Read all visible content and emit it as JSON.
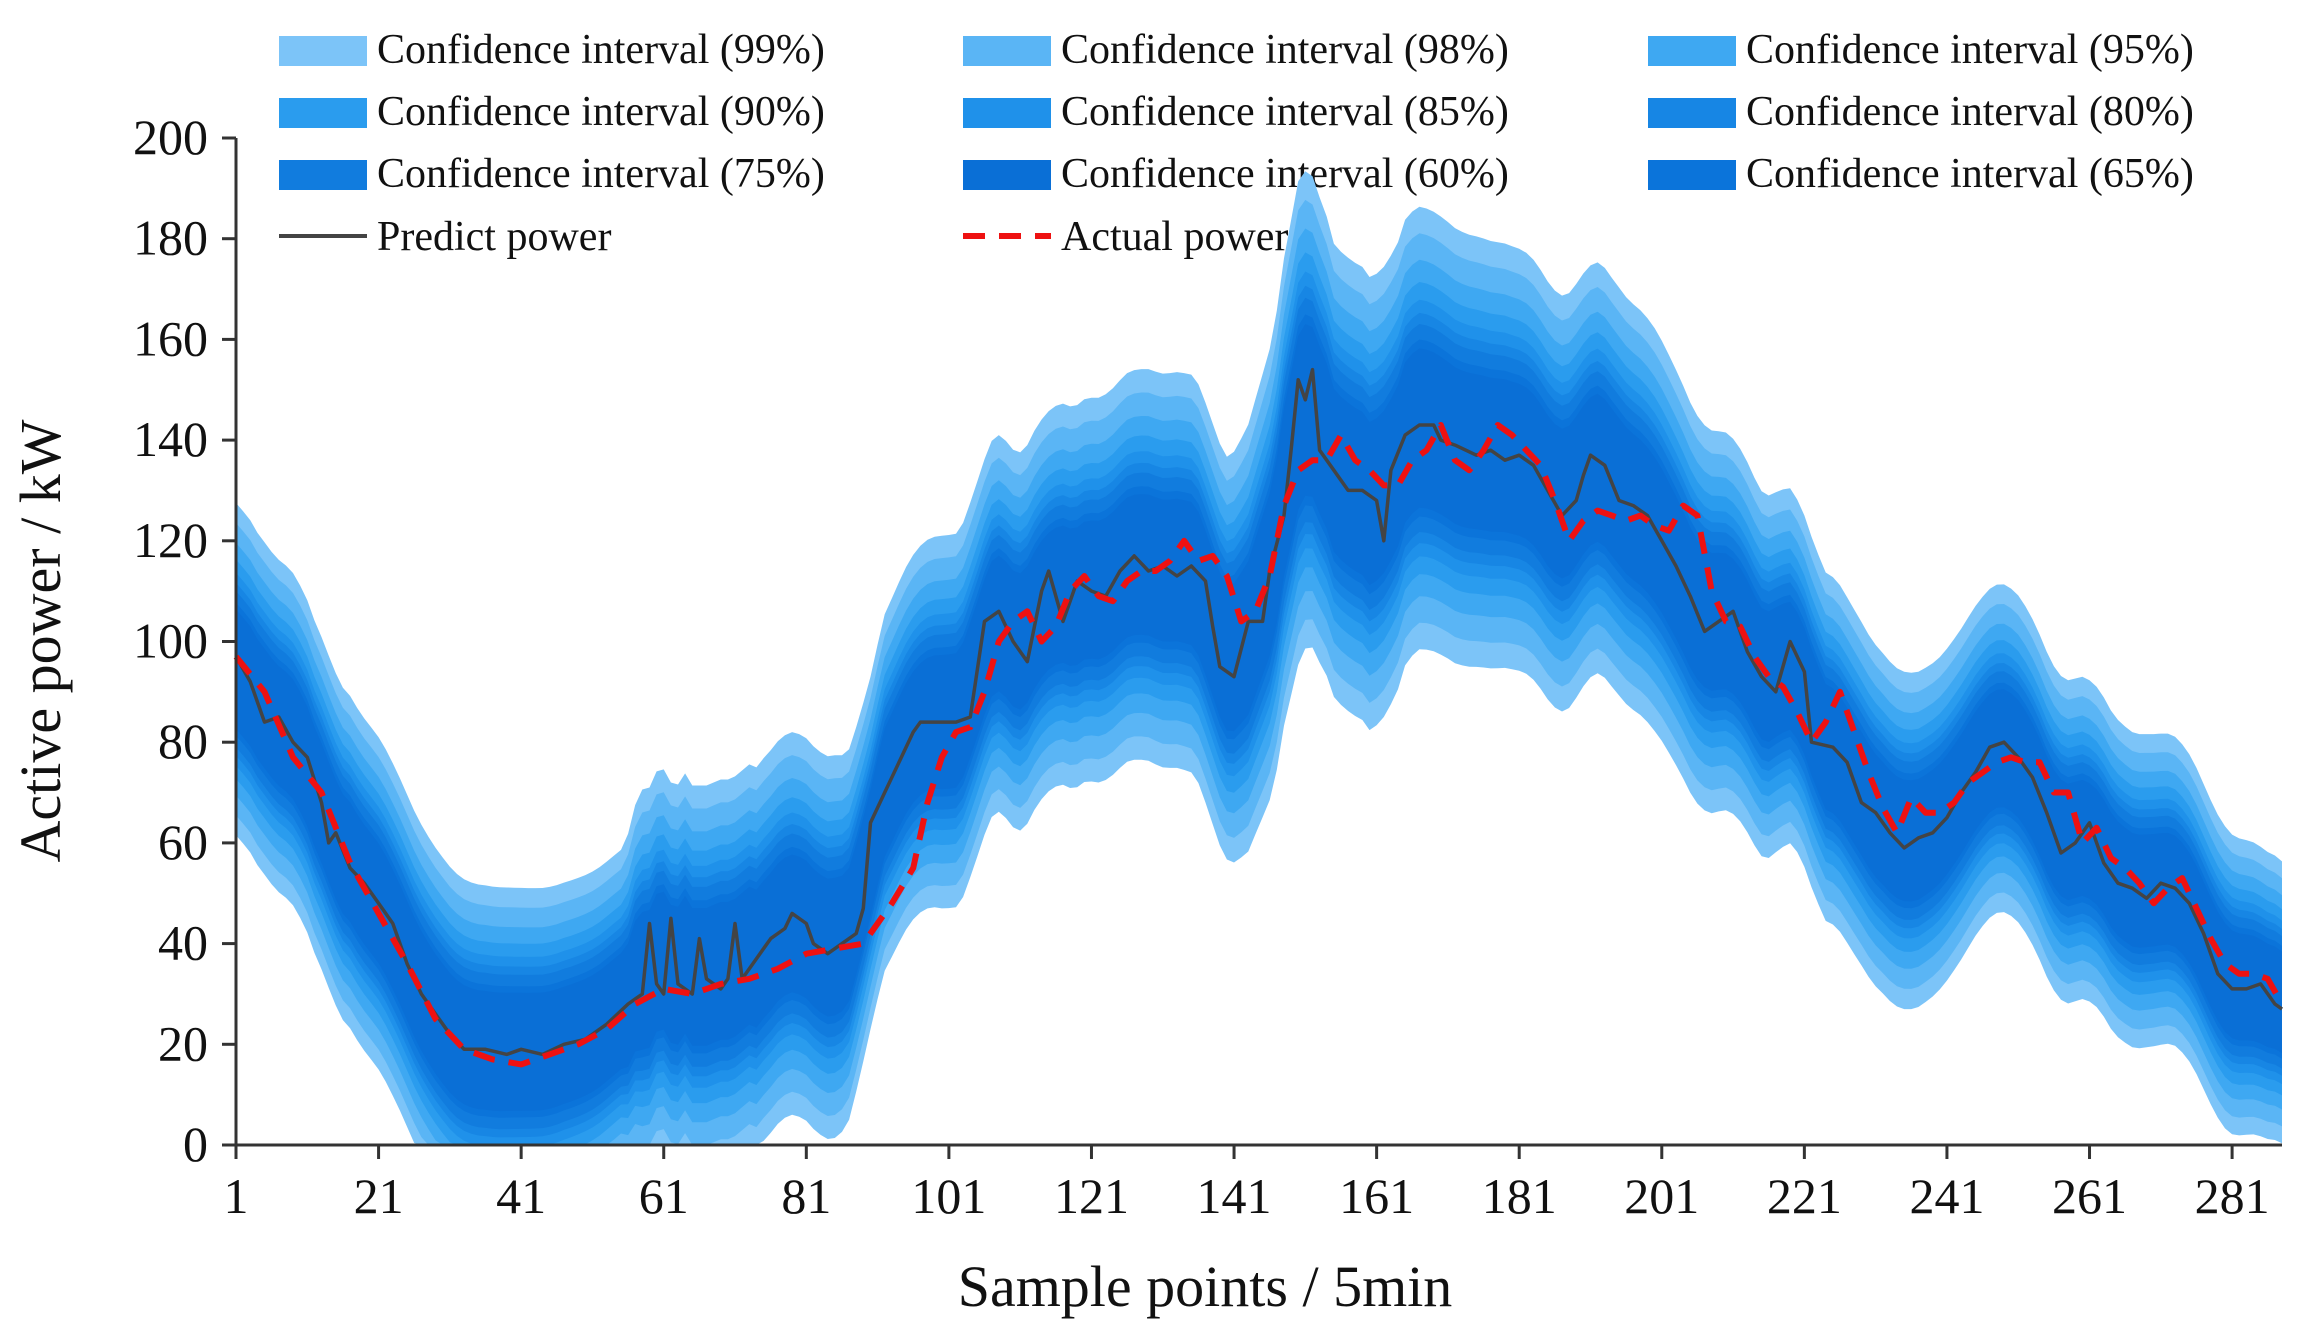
{
  "chart_data": {
    "type": "area",
    "title": "",
    "xlabel": "Sample points / 5min",
    "ylabel": "Active power / kW",
    "xlim": [
      1,
      288
    ],
    "ylim": [
      0,
      200
    ],
    "x_ticks": [
      "1",
      "21",
      "41",
      "61",
      "81",
      "101",
      "121",
      "141",
      "161",
      "181",
      "201",
      "221",
      "241",
      "261",
      "281"
    ],
    "y_ticks": [
      "0",
      "20",
      "40",
      "60",
      "80",
      "100",
      "120",
      "140",
      "160",
      "180",
      "200"
    ],
    "grid": false,
    "legend_position": "top",
    "legend": [
      {
        "label": "Confidence interval (99%)",
        "kind": "band",
        "color": "#7cc4f8"
      },
      {
        "label": "Confidence interval (98%)",
        "kind": "band",
        "color": "#5ab5f5"
      },
      {
        "label": "Confidence interval (95%)",
        "kind": "band",
        "color": "#3ea8f2"
      },
      {
        "label": "Confidence interval (90%)",
        "kind": "band",
        "color": "#2a9cee"
      },
      {
        "label": "Confidence interval (85%)",
        "kind": "band",
        "color": "#1f91ea"
      },
      {
        "label": "Confidence interval (80%)",
        "kind": "band",
        "color": "#1786e4"
      },
      {
        "label": "Confidence interval (75%)",
        "kind": "band",
        "color": "#117cde"
      },
      {
        "label": "Confidence interval (60%)",
        "kind": "band",
        "color": "#0a6fd6"
      },
      {
        "label": "Confidence interval (65%)",
        "kind": "band",
        "color": "#0b74da"
      },
      {
        "label": "Predict power",
        "kind": "line",
        "color": "#444444"
      },
      {
        "label": "Actual power",
        "kind": "dashed-line",
        "color": "#ee1111"
      }
    ],
    "band_levels": [
      99,
      98,
      95,
      90,
      85,
      80,
      75,
      65,
      60
    ],
    "band_colors": [
      "#7cc4f8",
      "#5ab5f5",
      "#3ea8f2",
      "#2a9cee",
      "#1f91ea",
      "#1786e4",
      "#117cde",
      "#0b74da",
      "#0a6fd6"
    ],
    "band_half_width_ratio": [
      1.0,
      0.88,
      0.76,
      0.66,
      0.58,
      0.52,
      0.47,
      0.4,
      0.36
    ],
    "band_99_half_width": [
      [
        1,
        33
      ],
      [
        30,
        33
      ],
      [
        55,
        32
      ],
      [
        58,
        38
      ],
      [
        85,
        38
      ],
      [
        90,
        35
      ],
      [
        100,
        37
      ],
      [
        120,
        38
      ],
      [
        140,
        40
      ],
      [
        150,
        48
      ],
      [
        155,
        45
      ],
      [
        160,
        45
      ],
      [
        180,
        42
      ],
      [
        200,
        40
      ],
      [
        220,
        35
      ],
      [
        240,
        33
      ],
      [
        260,
        32
      ],
      [
        280,
        30
      ],
      [
        288,
        28
      ]
    ],
    "series": [
      {
        "name": "Predict power",
        "points": [
          [
            1,
            97
          ],
          [
            3,
            92
          ],
          [
            5,
            84
          ],
          [
            7,
            85
          ],
          [
            9,
            80
          ],
          [
            11,
            77
          ],
          [
            13,
            68
          ],
          [
            14,
            60
          ],
          [
            15,
            62
          ],
          [
            17,
            55
          ],
          [
            19,
            52
          ],
          [
            21,
            48
          ],
          [
            23,
            44
          ],
          [
            25,
            36
          ],
          [
            27,
            30
          ],
          [
            29,
            26
          ],
          [
            31,
            22
          ],
          [
            33,
            19
          ],
          [
            36,
            19
          ],
          [
            39,
            18
          ],
          [
            41,
            19
          ],
          [
            44,
            18
          ],
          [
            47,
            20
          ],
          [
            50,
            21
          ],
          [
            53,
            24
          ],
          [
            56,
            28
          ],
          [
            58,
            30
          ],
          [
            59,
            44
          ],
          [
            60,
            32
          ],
          [
            61,
            30
          ],
          [
            62,
            45
          ],
          [
            63,
            32
          ],
          [
            65,
            30
          ],
          [
            66,
            41
          ],
          [
            67,
            33
          ],
          [
            69,
            31
          ],
          [
            70,
            33
          ],
          [
            71,
            44
          ],
          [
            72,
            33
          ],
          [
            74,
            37
          ],
          [
            76,
            41
          ],
          [
            78,
            43
          ],
          [
            79,
            46
          ],
          [
            81,
            44
          ],
          [
            82,
            40
          ],
          [
            84,
            38
          ],
          [
            86,
            40
          ],
          [
            88,
            42
          ],
          [
            89,
            47
          ],
          [
            90,
            64
          ],
          [
            92,
            70
          ],
          [
            94,
            76
          ],
          [
            96,
            82
          ],
          [
            97,
            84
          ],
          [
            100,
            84
          ],
          [
            102,
            84
          ],
          [
            104,
            85
          ],
          [
            106,
            104
          ],
          [
            108,
            106
          ],
          [
            110,
            100
          ],
          [
            112,
            96
          ],
          [
            114,
            110
          ],
          [
            115,
            114
          ],
          [
            117,
            104
          ],
          [
            119,
            112
          ],
          [
            121,
            110
          ],
          [
            123,
            109
          ],
          [
            125,
            114
          ],
          [
            127,
            117
          ],
          [
            129,
            114
          ],
          [
            131,
            115
          ],
          [
            133,
            113
          ],
          [
            135,
            115
          ],
          [
            137,
            112
          ],
          [
            138,
            103
          ],
          [
            139,
            95
          ],
          [
            141,
            93
          ],
          [
            143,
            104
          ],
          [
            145,
            104
          ],
          [
            146,
            114
          ],
          [
            148,
            125
          ],
          [
            149,
            138
          ],
          [
            150,
            152
          ],
          [
            151,
            148
          ],
          [
            152,
            154
          ],
          [
            153,
            138
          ],
          [
            155,
            134
          ],
          [
            157,
            130
          ],
          [
            159,
            130
          ],
          [
            161,
            128
          ],
          [
            162,
            120
          ],
          [
            163,
            134
          ],
          [
            165,
            141
          ],
          [
            167,
            143
          ],
          [
            169,
            143
          ],
          [
            170,
            140
          ],
          [
            172,
            139
          ],
          [
            175,
            137
          ],
          [
            177,
            138
          ],
          [
            179,
            136
          ],
          [
            181,
            137
          ],
          [
            183,
            135
          ],
          [
            185,
            130
          ],
          [
            187,
            125
          ],
          [
            189,
            128
          ],
          [
            190,
            133
          ],
          [
            191,
            137
          ],
          [
            193,
            135
          ],
          [
            195,
            128
          ],
          [
            197,
            127
          ],
          [
            199,
            125
          ],
          [
            201,
            120
          ],
          [
            203,
            115
          ],
          [
            205,
            109
          ],
          [
            207,
            102
          ],
          [
            209,
            104
          ],
          [
            211,
            106
          ],
          [
            213,
            98
          ],
          [
            215,
            93
          ],
          [
            217,
            90
          ],
          [
            219,
            100
          ],
          [
            221,
            94
          ],
          [
            222,
            80
          ],
          [
            225,
            79
          ],
          [
            227,
            76
          ],
          [
            229,
            68
          ],
          [
            231,
            66
          ],
          [
            233,
            62
          ],
          [
            235,
            59
          ],
          [
            237,
            61
          ],
          [
            239,
            62
          ],
          [
            241,
            65
          ],
          [
            243,
            70
          ],
          [
            245,
            74
          ],
          [
            247,
            79
          ],
          [
            249,
            80
          ],
          [
            251,
            77
          ],
          [
            253,
            73
          ],
          [
            255,
            66
          ],
          [
            257,
            58
          ],
          [
            259,
            60
          ],
          [
            261,
            64
          ],
          [
            263,
            56
          ],
          [
            265,
            52
          ],
          [
            267,
            51
          ],
          [
            269,
            49
          ],
          [
            271,
            52
          ],
          [
            273,
            51
          ],
          [
            275,
            48
          ],
          [
            277,
            42
          ],
          [
            279,
            34
          ],
          [
            281,
            31
          ],
          [
            283,
            31
          ],
          [
            285,
            32
          ],
          [
            287,
            28
          ],
          [
            288,
            27
          ]
        ]
      },
      {
        "name": "Actual power",
        "points": [
          [
            1,
            97
          ],
          [
            5,
            90
          ],
          [
            9,
            77
          ],
          [
            13,
            70
          ],
          [
            17,
            56
          ],
          [
            21,
            46
          ],
          [
            25,
            36
          ],
          [
            29,
            25
          ],
          [
            33,
            19
          ],
          [
            37,
            17
          ],
          [
            41,
            16
          ],
          [
            45,
            18
          ],
          [
            49,
            20
          ],
          [
            53,
            23
          ],
          [
            57,
            28
          ],
          [
            61,
            31
          ],
          [
            65,
            30
          ],
          [
            69,
            32
          ],
          [
            73,
            33
          ],
          [
            77,
            35
          ],
          [
            81,
            38
          ],
          [
            85,
            39
          ],
          [
            89,
            40
          ],
          [
            93,
            48
          ],
          [
            96,
            55
          ],
          [
            98,
            68
          ],
          [
            100,
            77
          ],
          [
            102,
            82
          ],
          [
            104,
            83
          ],
          [
            106,
            90
          ],
          [
            108,
            100
          ],
          [
            110,
            104
          ],
          [
            112,
            106
          ],
          [
            114,
            100
          ],
          [
            116,
            103
          ],
          [
            118,
            110
          ],
          [
            120,
            113
          ],
          [
            122,
            109
          ],
          [
            124,
            108
          ],
          [
            126,
            112
          ],
          [
            128,
            114
          ],
          [
            130,
            114
          ],
          [
            132,
            116
          ],
          [
            134,
            120
          ],
          [
            136,
            116
          ],
          [
            138,
            117
          ],
          [
            140,
            113
          ],
          [
            142,
            104
          ],
          [
            144,
            106
          ],
          [
            146,
            113
          ],
          [
            148,
            127
          ],
          [
            150,
            134
          ],
          [
            152,
            136
          ],
          [
            154,
            136
          ],
          [
            156,
            141
          ],
          [
            158,
            136
          ],
          [
            160,
            134
          ],
          [
            162,
            131
          ],
          [
            164,
            131
          ],
          [
            166,
            136
          ],
          [
            168,
            138
          ],
          [
            170,
            143
          ],
          [
            172,
            136
          ],
          [
            174,
            134
          ],
          [
            176,
            138
          ],
          [
            178,
            143
          ],
          [
            180,
            141
          ],
          [
            182,
            138
          ],
          [
            184,
            135
          ],
          [
            186,
            128
          ],
          [
            188,
            120
          ],
          [
            190,
            124
          ],
          [
            192,
            126
          ],
          [
            194,
            125
          ],
          [
            196,
            124
          ],
          [
            198,
            125
          ],
          [
            200,
            123
          ],
          [
            202,
            122
          ],
          [
            204,
            127
          ],
          [
            206,
            125
          ],
          [
            208,
            110
          ],
          [
            210,
            104
          ],
          [
            212,
            103
          ],
          [
            214,
            97
          ],
          [
            216,
            93
          ],
          [
            218,
            91
          ],
          [
            220,
            86
          ],
          [
            222,
            80
          ],
          [
            224,
            84
          ],
          [
            226,
            90
          ],
          [
            228,
            82
          ],
          [
            230,
            74
          ],
          [
            232,
            67
          ],
          [
            234,
            62
          ],
          [
            236,
            69
          ],
          [
            238,
            66
          ],
          [
            240,
            66
          ],
          [
            242,
            68
          ],
          [
            244,
            72
          ],
          [
            246,
            74
          ],
          [
            248,
            76
          ],
          [
            250,
            77
          ],
          [
            252,
            76
          ],
          [
            254,
            76
          ],
          [
            256,
            70
          ],
          [
            258,
            70
          ],
          [
            260,
            60
          ],
          [
            262,
            63
          ],
          [
            264,
            57
          ],
          [
            266,
            55
          ],
          [
            268,
            52
          ],
          [
            270,
            48
          ],
          [
            272,
            51
          ],
          [
            274,
            53
          ],
          [
            276,
            47
          ],
          [
            278,
            41
          ],
          [
            280,
            36
          ],
          [
            282,
            34
          ],
          [
            284,
            34
          ],
          [
            286,
            33
          ],
          [
            288,
            28
          ]
        ]
      }
    ]
  }
}
